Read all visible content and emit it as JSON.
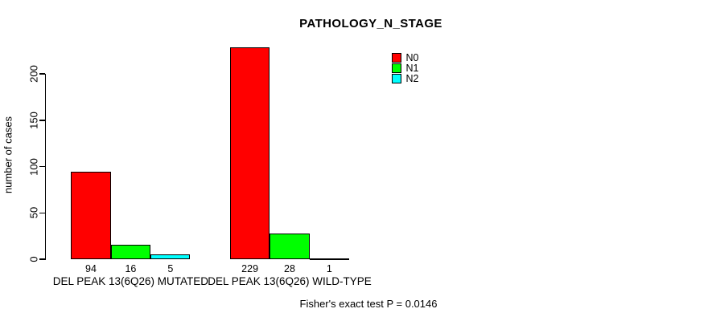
{
  "title": "PATHOLOGY_N_STAGE",
  "footnote": "Fisher's exact test P = 0.0146",
  "chart_data": {
    "type": "bar",
    "title": "PATHOLOGY_N_STAGE",
    "xlabel": "",
    "ylabel": "number of cases",
    "ylim": [
      0,
      230
    ],
    "yticks": [
      0,
      50,
      100,
      150,
      200
    ],
    "grid": false,
    "legend_position": "top-right",
    "bar_value_labels_shown": true,
    "categories": [
      "DEL PEAK 13(6Q26) MUTATED",
      "DEL PEAK 13(6Q26) WILD-TYPE"
    ],
    "series": [
      {
        "name": "N0",
        "color": "#ff0000",
        "values": [
          94,
          229
        ]
      },
      {
        "name": "N1",
        "color": "#00ff00",
        "values": [
          16,
          28
        ]
      },
      {
        "name": "N2",
        "color": "#00ffff",
        "values": [
          5,
          1
        ]
      }
    ]
  },
  "colors": {
    "background": "#ffffff",
    "axis": "#000000",
    "bar_border": "#000000",
    "text": "#000000"
  }
}
